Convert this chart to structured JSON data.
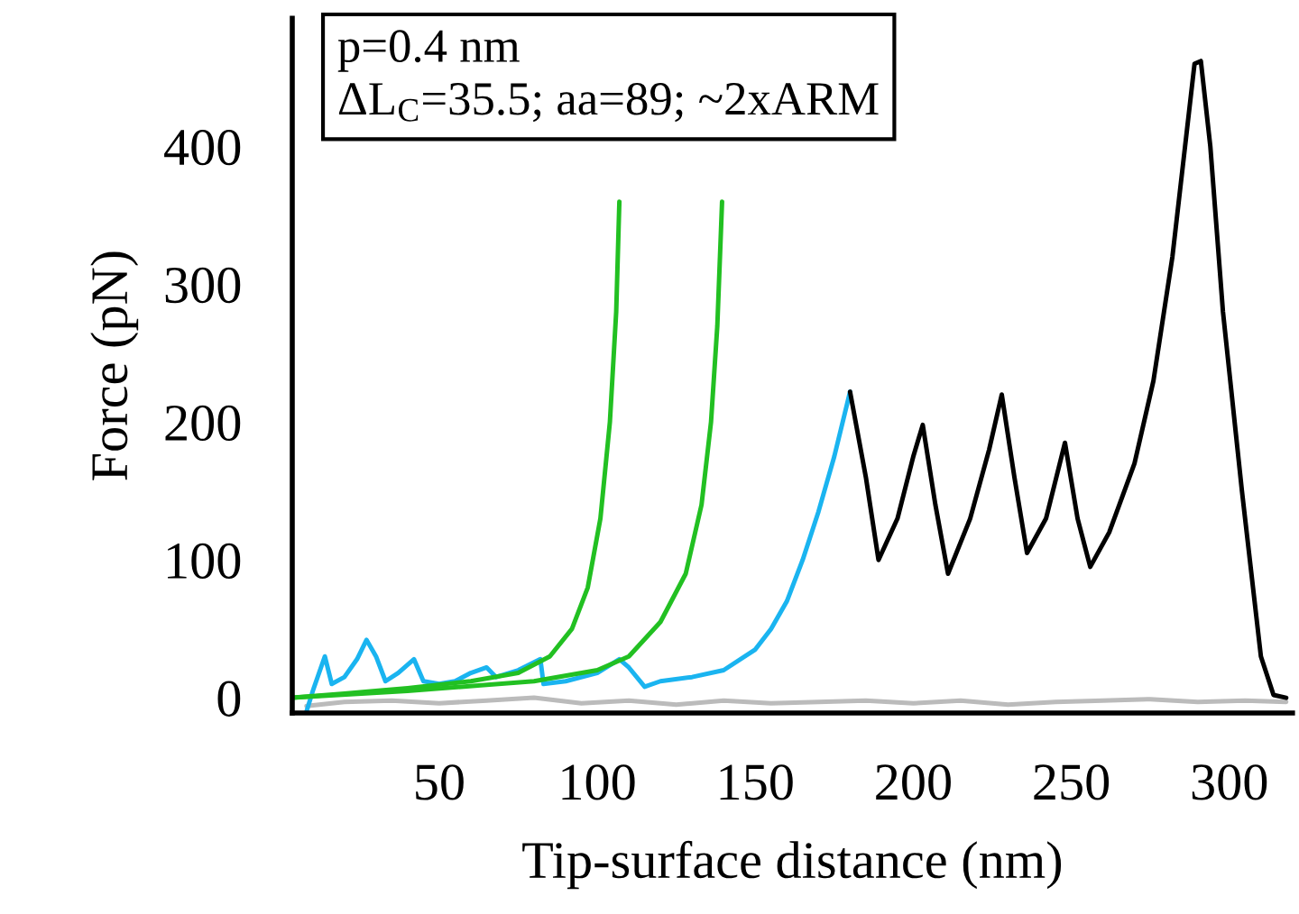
{
  "chart_data": {
    "type": "line",
    "xlabel": "Tip-surface distance (nm)",
    "ylabel": "Force (pN)",
    "xlim": [
      3.5,
      320
    ],
    "ylim": [
      -11,
      493
    ],
    "xticks": [
      50,
      100,
      150,
      200,
      250,
      300
    ],
    "yticks": [
      0,
      100,
      200,
      300,
      400
    ],
    "grid": false,
    "marker": "none",
    "line_style": "solid",
    "annotations": [
      "p=0.4 nm",
      "ΔL$_{C}$=35.5; aa=89; ~2xARM"
    ],
    "series": [
      {
        "color": "#bbbbbb",
        "x": [
          8,
          20,
          35,
          50,
          65,
          80,
          95,
          110,
          125,
          140,
          155,
          170,
          185,
          200,
          215,
          230,
          245,
          260,
          275,
          290,
          305,
          318
        ],
        "values": [
          -6,
          -3,
          -2,
          -4,
          -2,
          0,
          -4,
          -2,
          -5,
          -2,
          -4,
          -3,
          -2,
          -4,
          -2,
          -5,
          -3,
          -2,
          -1,
          -3,
          -2,
          -3
        ]
      },
      {
        "color": "#1ab4f0",
        "x": [
          8,
          10,
          13.8,
          16,
          20,
          24,
          27,
          30,
          33,
          37,
          42,
          45,
          50,
          55,
          60,
          65,
          68,
          75,
          82,
          83,
          90,
          100,
          107,
          110,
          115,
          120,
          130,
          140,
          150,
          155,
          160,
          165,
          170,
          175,
          180
        ],
        "values": [
          -10,
          5,
          30,
          10,
          15,
          28,
          42,
          30,
          12,
          18,
          28,
          12,
          10,
          12,
          18,
          22,
          15,
          20,
          28,
          10,
          12,
          18,
          28,
          22,
          8,
          12,
          15,
          20,
          35,
          50,
          70,
          100,
          135,
          175,
          222
        ]
      },
      {
        "color": "#000000",
        "x": [
          180,
          185,
          189,
          195,
          200,
          203,
          207,
          211,
          218,
          224,
          228,
          232,
          236,
          242,
          248,
          252,
          256,
          262,
          270,
          276,
          282,
          286,
          289,
          291,
          294,
          298,
          304,
          310,
          314,
          318
        ],
        "values": [
          222,
          160,
          100,
          130,
          175,
          198,
          140,
          90,
          130,
          180,
          220,
          160,
          105,
          130,
          185,
          130,
          95,
          120,
          170,
          230,
          320,
          400,
          460,
          462,
          400,
          280,
          150,
          30,
          2,
          0
        ]
      },
      {
        "color": "#22c022",
        "x": [
          3.5,
          20,
          40,
          60,
          75,
          85,
          92,
          97,
          101,
          104,
          106,
          107
        ],
        "values": [
          0,
          3,
          7,
          12,
          18,
          30,
          50,
          80,
          130,
          200,
          280,
          360
        ]
      },
      {
        "color": "#22c022",
        "x": [
          3.5,
          40,
          80,
          100,
          110,
          120,
          128,
          133,
          136,
          138,
          139.5
        ],
        "values": [
          0,
          5,
          12,
          20,
          30,
          55,
          90,
          140,
          200,
          270,
          360
        ]
      }
    ]
  }
}
